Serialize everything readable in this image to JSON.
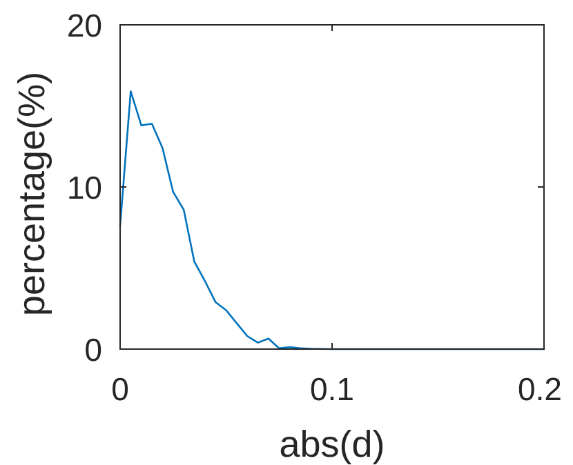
{
  "chart_data": {
    "type": "line",
    "title": "",
    "xlabel": "abs(d)",
    "ylabel": "percentage(%)",
    "xlim": [
      0,
      0.2
    ],
    "ylim": [
      0,
      20
    ],
    "xticks": [
      0,
      0.1,
      0.2
    ],
    "xtick_labels": [
      "0",
      "0.1",
      "0.2"
    ],
    "yticks": [
      0,
      10,
      20
    ],
    "ytick_labels": [
      "0",
      "10",
      "20"
    ],
    "grid": false,
    "box": true,
    "colors": {
      "line": "#0072BD",
      "axes": "#262626",
      "background": "#ffffff"
    },
    "series": [
      {
        "x": [
          0,
          0.005,
          0.01,
          0.015,
          0.02,
          0.025,
          0.03,
          0.035,
          0.04,
          0.045,
          0.05,
          0.055,
          0.06,
          0.065,
          0.07,
          0.075,
          0.08,
          0.085,
          0.09,
          0.095,
          0.1,
          0.105,
          0.11,
          0.12,
          0.13,
          0.14,
          0.15,
          0.16,
          0.17,
          0.18,
          0.19,
          0.2
        ],
        "y": [
          7.6,
          15.9,
          13.8,
          13.9,
          12.4,
          9.7,
          8.6,
          5.4,
          4.2,
          2.9,
          2.4,
          1.6,
          0.8,
          0.4,
          0.65,
          0.05,
          0.12,
          0.05,
          0.02,
          0.01,
          0,
          0,
          0,
          0,
          0,
          0,
          0,
          0,
          0,
          0,
          0,
          0
        ]
      }
    ]
  }
}
